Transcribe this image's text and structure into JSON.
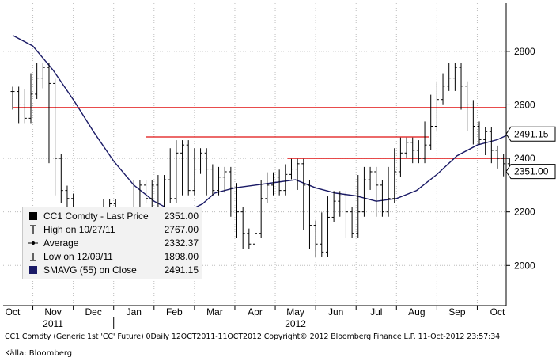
{
  "chart_data": {
    "type": "ohlc",
    "security": "CC1 Comdty",
    "ylim": [
      1850,
      2980
    ],
    "yticks": [
      2000,
      2200,
      2400,
      2600,
      2800
    ],
    "month_labels": [
      "Oct",
      "Nov",
      "Dec",
      "Jan",
      "Feb",
      "Mar",
      "Apr",
      "May",
      "Jun",
      "Jul",
      "Aug",
      "Sep",
      "Oct"
    ],
    "year_labels": [
      {
        "label": "2011",
        "month_index": 1
      },
      {
        "label": "2012",
        "month_index": 7
      }
    ],
    "price_series": [
      {
        "month": 0.0,
        "close": 2650
      },
      {
        "month": 0.15,
        "close": 2600
      },
      {
        "month": 0.3,
        "close": 2550
      },
      {
        "month": 0.45,
        "close": 2640
      },
      {
        "month": 0.6,
        "close": 2700
      },
      {
        "month": 0.75,
        "close": 2740
      },
      {
        "month": 0.9,
        "close": 2680
      },
      {
        "month": 1.05,
        "close": 2400
      },
      {
        "month": 1.2,
        "close": 2280
      },
      {
        "month": 1.35,
        "close": 2250
      },
      {
        "month": 1.5,
        "close": 2200
      },
      {
        "month": 1.65,
        "close": 2150
      },
      {
        "month": 1.8,
        "close": 2120
      },
      {
        "month": 1.95,
        "close": 2100
      },
      {
        "month": 2.1,
        "close": 2050
      },
      {
        "month": 2.25,
        "close": 2150
      },
      {
        "month": 2.4,
        "close": 2230
      },
      {
        "month": 2.55,
        "close": 2120
      },
      {
        "month": 2.7,
        "close": 2050
      },
      {
        "month": 2.85,
        "close": 2000
      },
      {
        "month": 3.0,
        "close": 2150
      },
      {
        "month": 3.15,
        "close": 2300
      },
      {
        "month": 3.3,
        "close": 2250
      },
      {
        "month": 3.45,
        "close": 2300
      },
      {
        "month": 3.6,
        "close": 2200
      },
      {
        "month": 3.75,
        "close": 2320
      },
      {
        "month": 3.9,
        "close": 2250
      },
      {
        "month": 4.05,
        "close": 2420
      },
      {
        "month": 4.2,
        "close": 2450
      },
      {
        "month": 4.35,
        "close": 2280
      },
      {
        "month": 4.5,
        "close": 2360
      },
      {
        "month": 4.65,
        "close": 2420
      },
      {
        "month": 4.8,
        "close": 2360
      },
      {
        "month": 4.95,
        "close": 2280
      },
      {
        "month": 5.1,
        "close": 2330
      },
      {
        "month": 5.25,
        "close": 2350
      },
      {
        "month": 5.4,
        "close": 2290
      },
      {
        "month": 5.55,
        "close": 2200
      },
      {
        "month": 5.7,
        "close": 2120
      },
      {
        "month": 5.85,
        "close": 2080
      },
      {
        "month": 6.0,
        "close": 2120
      },
      {
        "month": 6.15,
        "close": 2250
      },
      {
        "month": 6.3,
        "close": 2300
      },
      {
        "month": 6.45,
        "close": 2330
      },
      {
        "month": 6.6,
        "close": 2280
      },
      {
        "month": 6.75,
        "close": 2340
      },
      {
        "month": 6.9,
        "close": 2360
      },
      {
        "month": 7.05,
        "close": 2380
      },
      {
        "month": 7.2,
        "close": 2300
      },
      {
        "month": 7.35,
        "close": 2150
      },
      {
        "month": 7.5,
        "close": 2080
      },
      {
        "month": 7.65,
        "close": 2050
      },
      {
        "month": 7.8,
        "close": 2180
      },
      {
        "month": 7.95,
        "close": 2240
      },
      {
        "month": 8.1,
        "close": 2260
      },
      {
        "month": 8.25,
        "close": 2200
      },
      {
        "month": 8.4,
        "close": 2120
      },
      {
        "month": 8.55,
        "close": 2200
      },
      {
        "month": 8.7,
        "close": 2320
      },
      {
        "month": 8.85,
        "close": 2350
      },
      {
        "month": 9.0,
        "close": 2300
      },
      {
        "month": 9.15,
        "close": 2200
      },
      {
        "month": 9.3,
        "close": 2250
      },
      {
        "month": 9.45,
        "close": 2350
      },
      {
        "month": 9.6,
        "close": 2420
      },
      {
        "month": 9.75,
        "close": 2460
      },
      {
        "month": 9.9,
        "close": 2430
      },
      {
        "month": 10.05,
        "close": 2400
      },
      {
        "month": 10.2,
        "close": 2450
      },
      {
        "month": 10.35,
        "close": 2520
      },
      {
        "month": 10.5,
        "close": 2620
      },
      {
        "month": 10.65,
        "close": 2670
      },
      {
        "month": 10.8,
        "close": 2700
      },
      {
        "month": 10.95,
        "close": 2740
      },
      {
        "month": 11.1,
        "close": 2670
      },
      {
        "month": 11.25,
        "close": 2600
      },
      {
        "month": 11.4,
        "close": 2520
      },
      {
        "month": 11.55,
        "close": 2470
      },
      {
        "month": 11.7,
        "close": 2500
      },
      {
        "month": 11.85,
        "close": 2430
      },
      {
        "month": 12.0,
        "close": 2400
      },
      {
        "month": 12.15,
        "close": 2380
      },
      {
        "month": 12.3,
        "close": 2351
      }
    ],
    "sma_series": [
      {
        "month": 0.0,
        "value": 2860
      },
      {
        "month": 0.5,
        "value": 2820
      },
      {
        "month": 1.0,
        "value": 2730
      },
      {
        "month": 1.5,
        "value": 2620
      },
      {
        "month": 2.0,
        "value": 2500
      },
      {
        "month": 2.5,
        "value": 2390
      },
      {
        "month": 3.0,
        "value": 2300
      },
      {
        "month": 3.5,
        "value": 2240
      },
      {
        "month": 4.0,
        "value": 2200
      },
      {
        "month": 4.3,
        "value": 2200
      },
      {
        "month": 4.7,
        "value": 2230
      },
      {
        "month": 5.0,
        "value": 2270
      },
      {
        "month": 5.5,
        "value": 2290
      },
      {
        "month": 6.0,
        "value": 2300
      },
      {
        "month": 6.5,
        "value": 2310
      },
      {
        "month": 7.0,
        "value": 2320
      },
      {
        "month": 7.5,
        "value": 2290
      },
      {
        "month": 8.0,
        "value": 2270
      },
      {
        "month": 8.5,
        "value": 2260
      },
      {
        "month": 9.0,
        "value": 2240
      },
      {
        "month": 9.5,
        "value": 2250
      },
      {
        "month": 10.0,
        "value": 2280
      },
      {
        "month": 10.5,
        "value": 2340
      },
      {
        "month": 11.0,
        "value": 2410
      },
      {
        "month": 11.5,
        "value": 2450
      },
      {
        "month": 12.0,
        "value": 2470
      },
      {
        "month": 12.3,
        "value": 2491
      }
    ],
    "horizontal_lines": [
      {
        "value": 2590,
        "from_month": 0.0,
        "to_month": 12.5
      },
      {
        "value": 2480,
        "from_month": 3.3,
        "to_month": 10.3
      },
      {
        "value": 2400,
        "from_month": 6.8,
        "to_month": 12.5
      }
    ],
    "price_labels": [
      {
        "value": 2491.15,
        "label": "2491.15",
        "fill": "#ffffff",
        "text_color": "#000000",
        "border": "#000000"
      },
      {
        "value": 2351.0,
        "label": "2351.00",
        "fill": "#ffffff",
        "text_color": "#000000",
        "border": "#000000"
      }
    ],
    "legend": [
      {
        "symbol": "filled-square",
        "label": "CC1 Comdty - Last Price",
        "value": "2351.00"
      },
      {
        "symbol": "t-high",
        "label": "High on 10/27/11",
        "value": "2767.00"
      },
      {
        "symbol": "dot-line",
        "label": "Average",
        "value": "2332.37"
      },
      {
        "symbol": "t-low",
        "label": "Low on 12/09/11",
        "value": "1898.00"
      },
      {
        "symbol": "navy-square",
        "label": "SMAVG (55) on Close",
        "value": "2491.15"
      }
    ],
    "colors": {
      "price": "#000000",
      "sma": "#1a1a66",
      "resistance": "#e01010",
      "grid": "#bdbdbd",
      "legend_bg": "#f2f2f2"
    },
    "grid": true
  },
  "footer": "CC1 Comdty (Generic 1st 'CC' Future) 0Daily 12OCT2011-11OCT2012 Copyright© 2012 Bloomberg Finance L.P. 11-Oct-2012 23:57:34",
  "source": "Källa: Bloomberg"
}
